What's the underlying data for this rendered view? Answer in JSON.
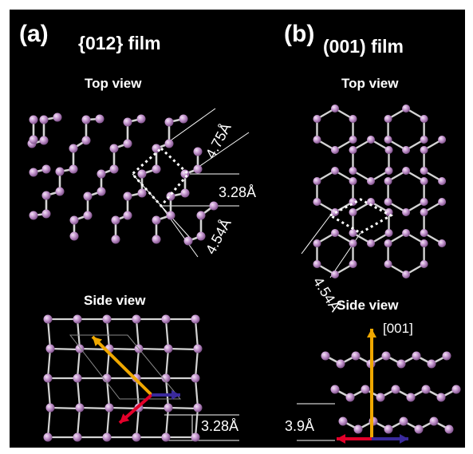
{
  "colors": {
    "background": "#000000",
    "atom": "#c79ad1",
    "bond": "#d4d4d4",
    "guide": "#ffffff",
    "arrow_orange": "#f0a800",
    "arrow_red": "#e3002a",
    "arrow_blue": "#3a2a9c"
  },
  "panel_a": {
    "letter": "(a)",
    "title": "{012} film",
    "top_view": {
      "label": "Top view",
      "dims": [
        "4.75Å",
        "3.28Å",
        "4.54Å"
      ]
    },
    "side_view": {
      "label": "Side view",
      "dims": [
        "3.28Å"
      ]
    }
  },
  "panel_b": {
    "letter": "(b)",
    "title": "(001) film",
    "top_view": {
      "label": "Top view",
      "dims": [
        "4.54Å"
      ]
    },
    "side_view": {
      "label": "Side view",
      "dims": [
        "3.9Å"
      ],
      "direction": "[001]"
    }
  },
  "icons": [
    "atom-sphere",
    "bond-line",
    "dotted-unit-cell",
    "orange-arrow",
    "red-arrow",
    "blue-arrow"
  ]
}
